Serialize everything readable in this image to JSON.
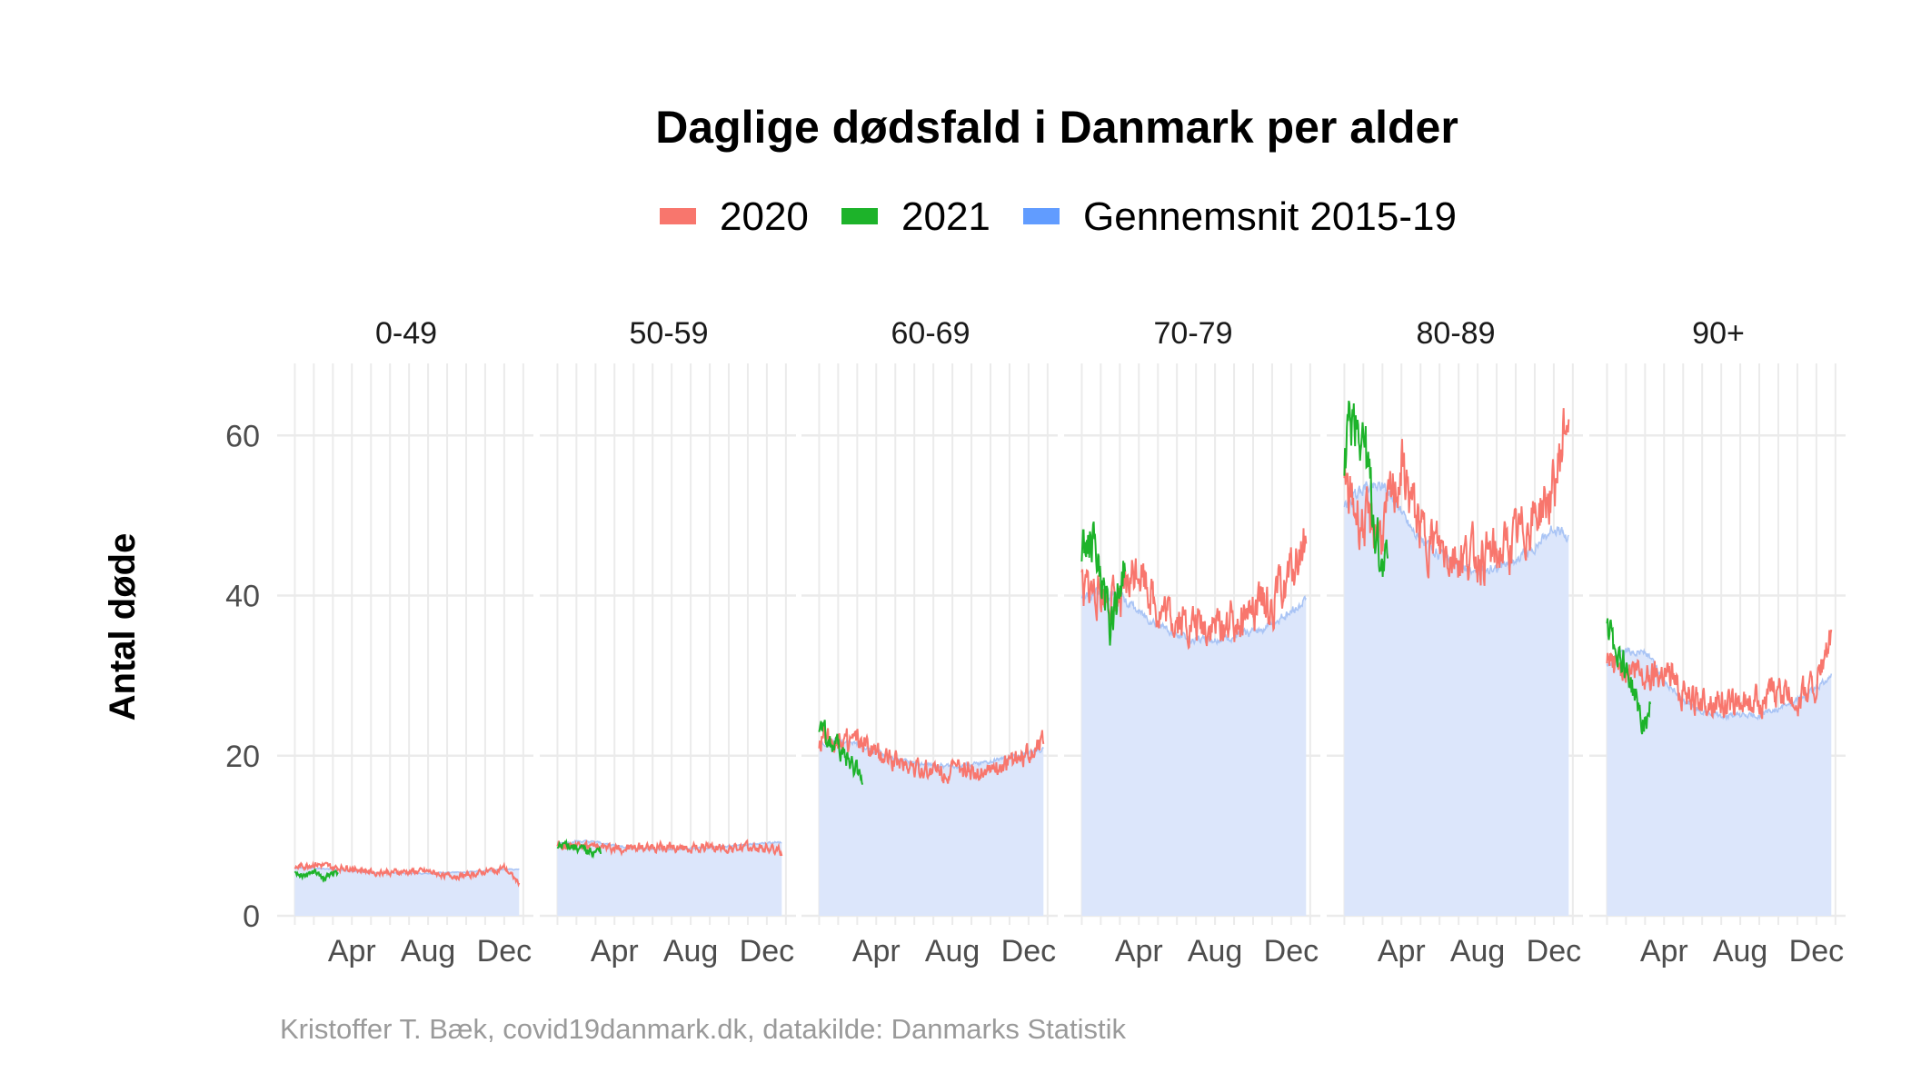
{
  "title": "Daglige dødsfald i Danmark per alder",
  "caption": "Kristoffer T. Bæk, covid19danmark.dk, datakilde: Danmarks Statistik",
  "ylabel": "Antal døde",
  "legend": [
    {
      "label": "2020",
      "color": "#f8766d"
    },
    {
      "label": "2021",
      "color": "#1db32a"
    },
    {
      "label": "Gennemsnit 2015-19",
      "color": "#619cff"
    }
  ],
  "y_ticks": [
    "0",
    "20",
    "40",
    "60"
  ],
  "x_ticks": [
    "Apr",
    "Aug",
    "Dec"
  ],
  "chart_data": {
    "type": "line",
    "xlabel": "",
    "ylabel": "Antal døde",
    "ylim": [
      0,
      69
    ],
    "x_unit": "month",
    "x_tick_months": [
      4,
      8,
      12
    ],
    "x_tick_labels": [
      "Apr",
      "Aug",
      "Dec"
    ],
    "grid": true,
    "legend_position": "top",
    "facets": [
      "0-49",
      "50-59",
      "60-69",
      "70-79",
      "80-89",
      "90+"
    ],
    "series": [
      {
        "name": "Gennemsnit 2015-19",
        "style": "area",
        "x": [
          1,
          2,
          3,
          4,
          5,
          6,
          7,
          8,
          9,
          10,
          11,
          12,
          12.8
        ],
        "values": {
          "0-49": [
            6.0,
            6.0,
            5.8,
            5.6,
            5.4,
            5.3,
            5.3,
            5.3,
            5.4,
            5.5,
            5.6,
            5.8,
            5.8
          ],
          "50-59": [
            9.0,
            9.3,
            9.2,
            8.8,
            8.5,
            8.3,
            8.3,
            8.4,
            8.5,
            8.7,
            8.9,
            9.1,
            9.2
          ],
          "60-69": [
            21.5,
            22.0,
            21.5,
            20.5,
            19.5,
            19.0,
            18.8,
            18.7,
            18.8,
            19.2,
            19.8,
            20.3,
            20.8
          ],
          "70-79": [
            39.5,
            40.5,
            40.0,
            38.0,
            36.5,
            35.0,
            34.5,
            34.5,
            34.8,
            35.5,
            36.5,
            38.0,
            39.5
          ],
          "80-89": [
            51.0,
            53.5,
            54.0,
            50.5,
            47.0,
            45.0,
            43.5,
            43.0,
            43.5,
            44.5,
            46.0,
            48.5,
            47.0
          ],
          "90+": [
            31.5,
            33.0,
            33.0,
            29.5,
            27.0,
            25.5,
            25.0,
            25.0,
            25.0,
            25.8,
            27.0,
            28.5,
            30.0
          ]
        }
      },
      {
        "name": "2020",
        "style": "line",
        "x": [
          1,
          2,
          3,
          4,
          5,
          6,
          7,
          8,
          9,
          10,
          11,
          12,
          12.8
        ],
        "values": {
          "0-49": [
            6.0,
            6.5,
            6.0,
            6.0,
            5.5,
            5.5,
            5.5,
            5.5,
            5.0,
            5.0,
            5.5,
            6.0,
            4.0
          ],
          "50-59": [
            9.0,
            9.0,
            8.5,
            8.5,
            8.5,
            8.5,
            8.5,
            8.5,
            8.5,
            8.5,
            8.5,
            8.5,
            8.0
          ],
          "60-69": [
            22.0,
            22.0,
            21.5,
            20.0,
            19.5,
            18.5,
            18.0,
            18.0,
            18.0,
            18.5,
            19.0,
            20.0,
            22.5
          ],
          "70-79": [
            41.0,
            40.0,
            39.0,
            44.0,
            38.0,
            37.0,
            36.0,
            36.0,
            37.0,
            38.0,
            39.0,
            43.0,
            47.0
          ],
          "80-89": [
            53.0,
            49.0,
            48.0,
            56.0,
            48.0,
            46.0,
            45.0,
            45.0,
            45.0,
            47.0,
            50.0,
            53.0,
            64.0
          ],
          "90+": [
            31.0,
            31.0,
            30.0,
            31.0,
            28.0,
            27.0,
            26.5,
            26.5,
            27.0,
            28.0,
            27.0,
            29.0,
            35.0
          ]
        }
      },
      {
        "name": "2021",
        "style": "line",
        "x": [
          1,
          1.5,
          2,
          2.5,
          3,
          3.3
        ],
        "values": {
          "0-49": [
            5.5,
            5.0,
            5.5,
            4.5,
            5.5,
            5.0
          ],
          "50-59": [
            8.5,
            9.0,
            8.5,
            8.0,
            8.0,
            8.0
          ],
          "60-69": [
            23.5,
            22.0,
            21.0,
            19.5,
            18.0,
            17.5
          ],
          "70-79": [
            46.0,
            47.0,
            42.0,
            36.0,
            42.0,
            44.0
          ],
          "80-89": [
            58.0,
            63.0,
            60.0,
            50.0,
            44.0,
            45.0
          ],
          "90+": [
            35.0,
            34.0,
            31.0,
            27.0,
            24.0,
            26.0
          ]
        }
      }
    ]
  }
}
